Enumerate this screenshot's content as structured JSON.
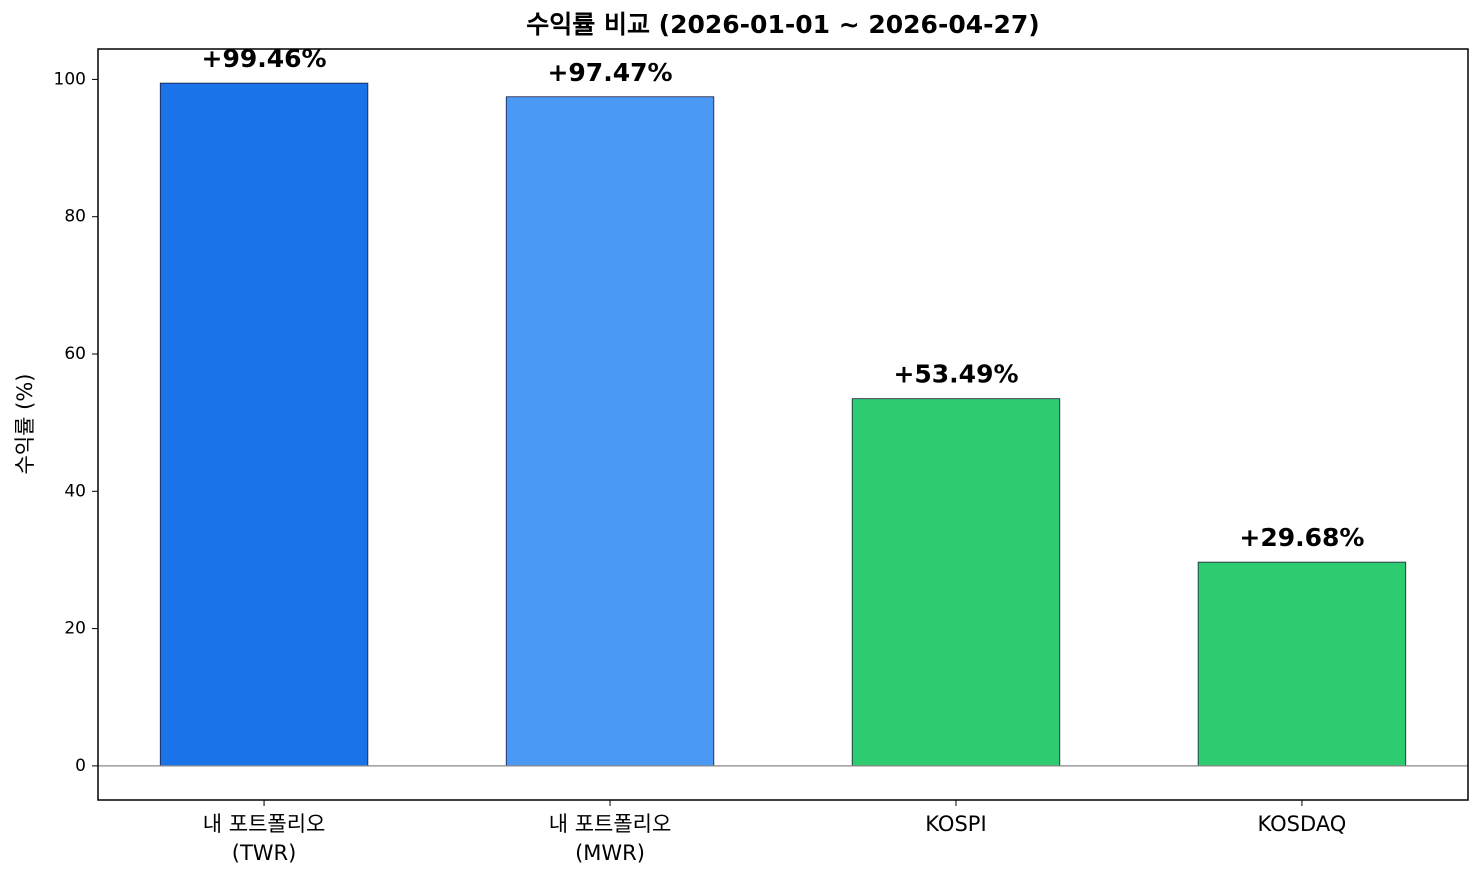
{
  "chart_data": {
    "type": "bar",
    "title": "수익률 비교 (2026-01-01 ~ 2026-04-27)",
    "y_label": "수익률 (%)",
    "categories": [
      "내 포트폴리오\n(TWR)",
      "내 포트폴리오\n(MWR)",
      "KOSPI",
      "KOSDAQ"
    ],
    "values": [
      99.46,
      97.47,
      53.49,
      29.68
    ],
    "value_labels": [
      "+99.46%",
      "+97.47%",
      "+53.49%",
      "+29.68%"
    ],
    "colors": [
      "#1a73e8",
      "#4a9af5",
      "#2ecc71",
      "#2ecc71"
    ],
    "ylim": [
      -4.97,
      104.43
    ],
    "yticks": [
      0,
      20,
      40,
      60,
      80,
      100
    ],
    "grid": false
  }
}
